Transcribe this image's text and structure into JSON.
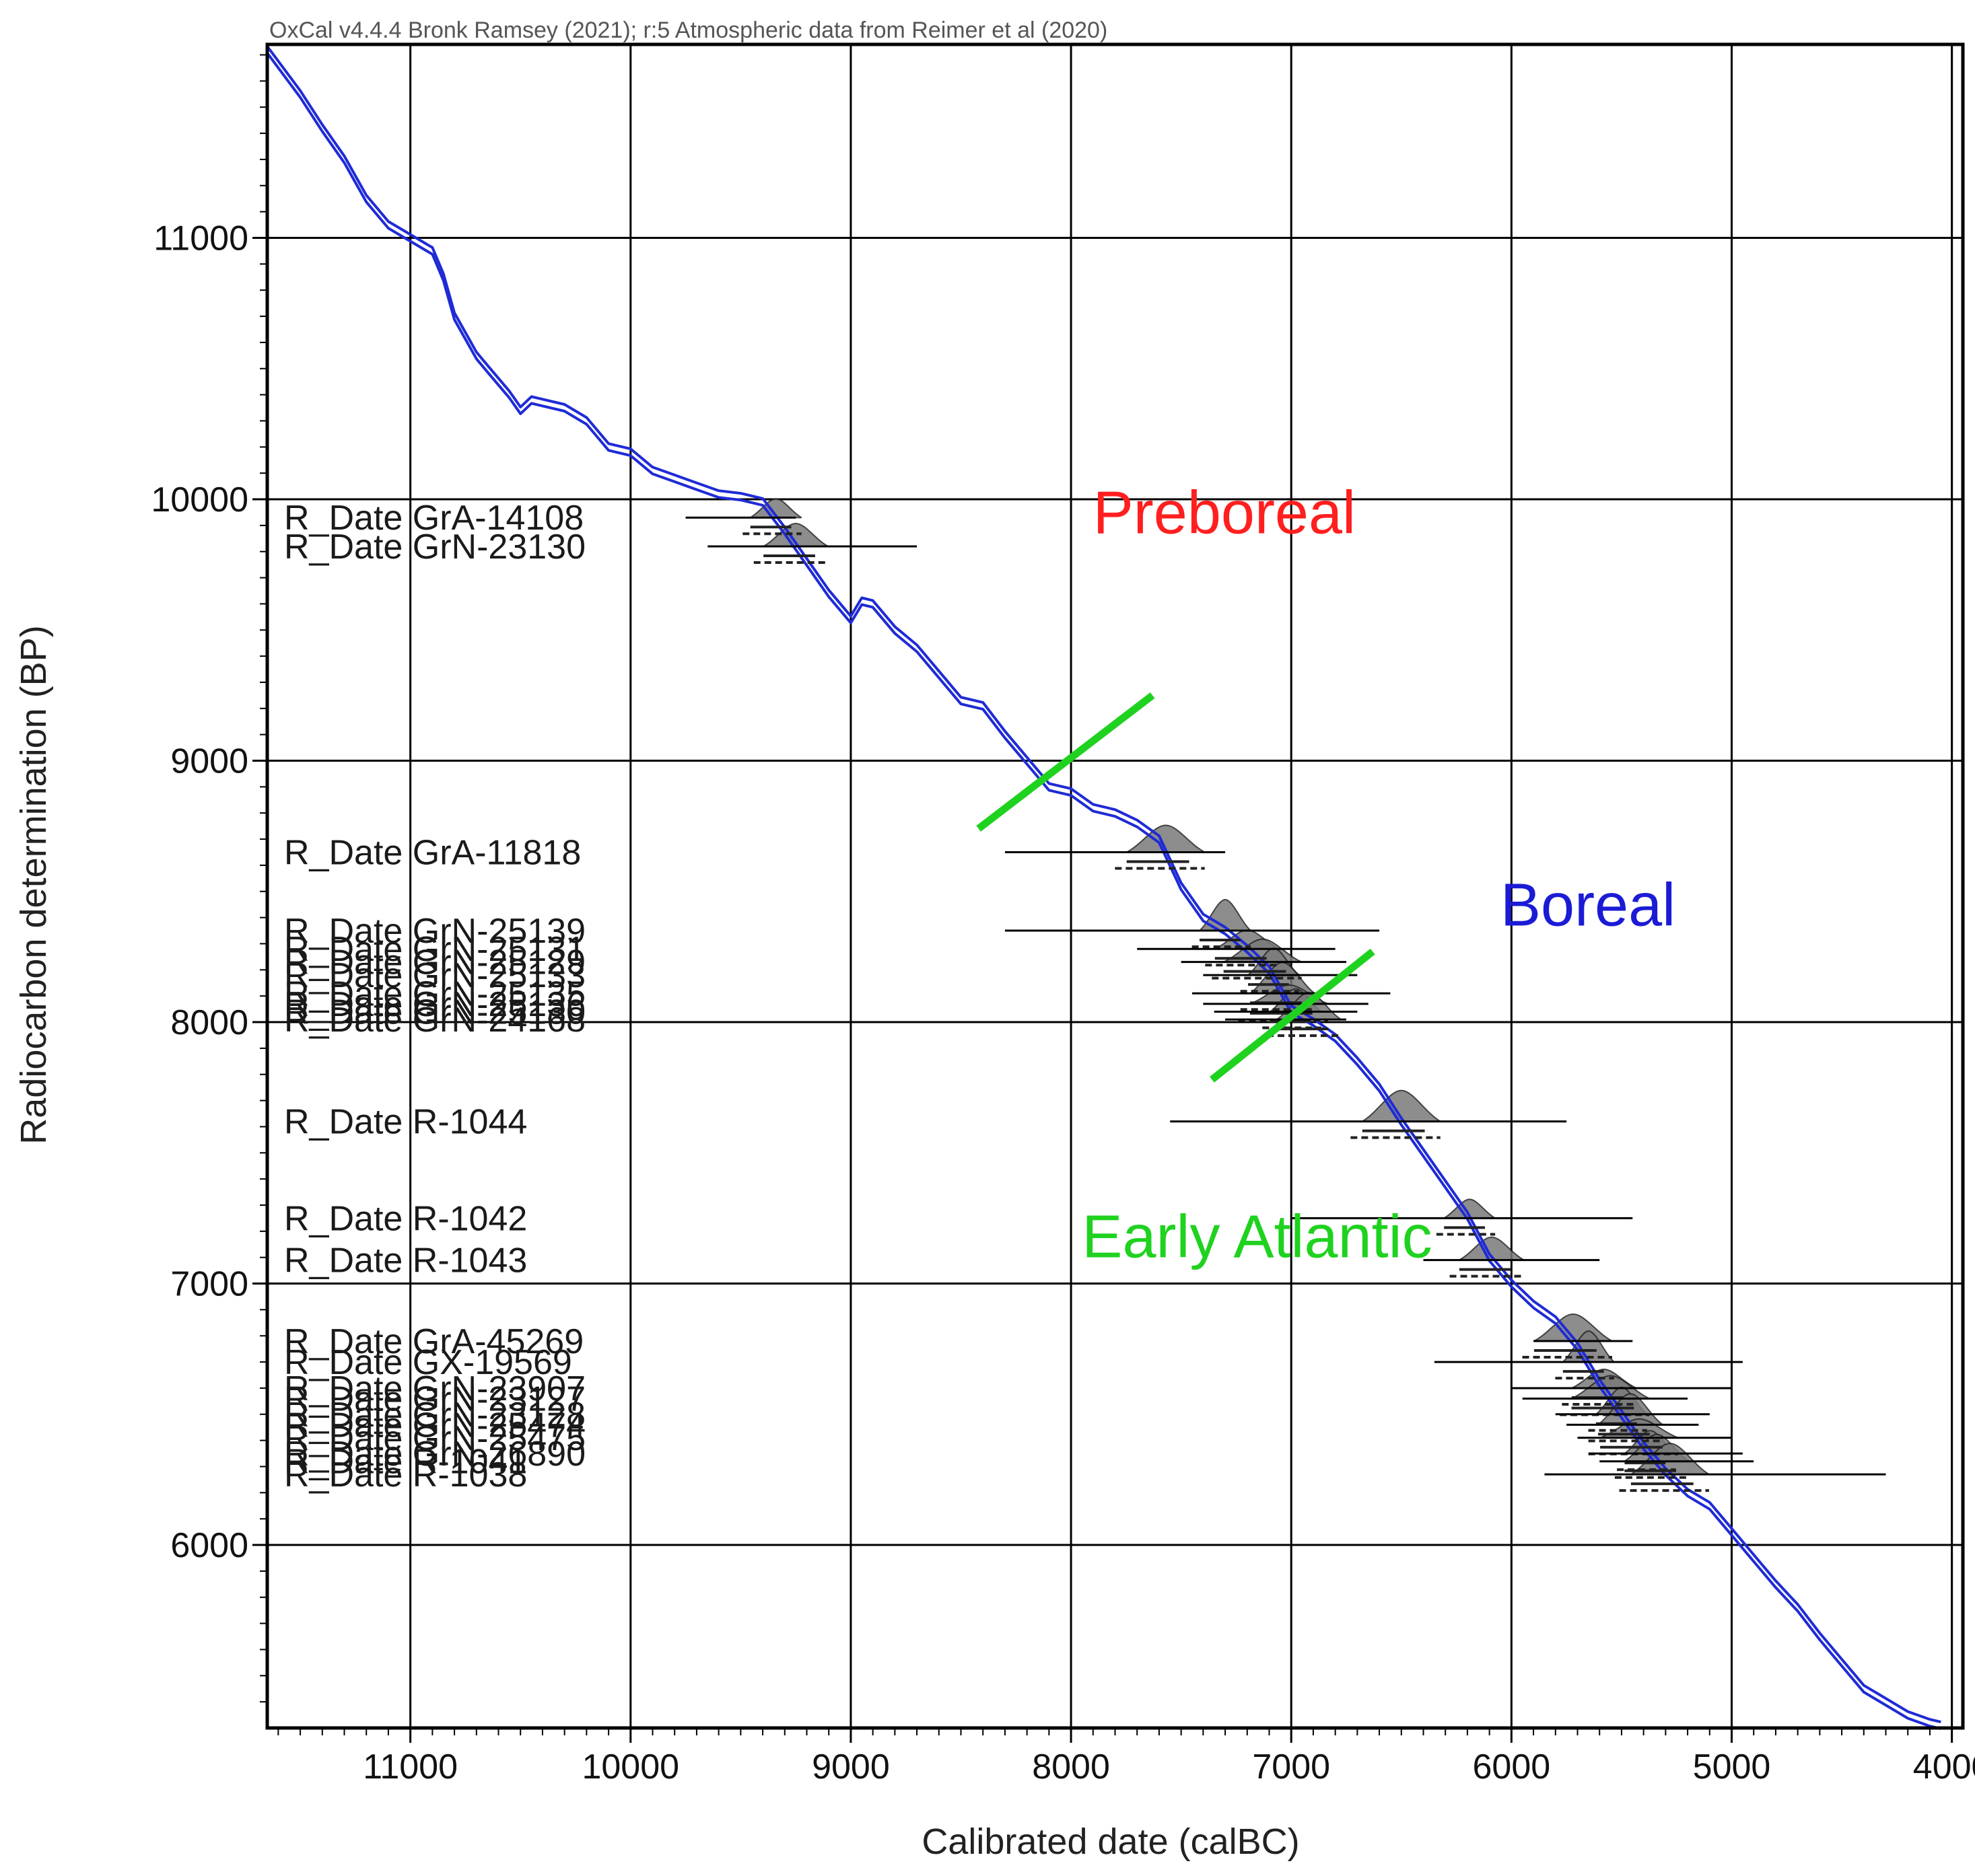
{
  "header": "OxCal v4.4.4 Bronk Ramsey (2021); r:5 Atmospheric data from Reimer et al (2020)",
  "chart_data": {
    "type": "line",
    "title": "OxCal v4.4.4 Bronk Ramsey (2021); r:5 Atmospheric data from Reimer et al (2020)",
    "xlabel": "Calibrated date (calBC)",
    "ylabel": "Radiocarbon determination (BP)",
    "xlim": [
      11650,
      3950
    ],
    "ylim": [
      5300,
      11740
    ],
    "x_reversed": true,
    "x_ticks": [
      "11000",
      "10000",
      "9000",
      "8000",
      "7000",
      "6000",
      "5000",
      "4000"
    ],
    "y_ticks": [
      "11000",
      "10000",
      "9000",
      "8000",
      "7000",
      "6000"
    ],
    "x_tick_values": [
      11000,
      10000,
      9000,
      8000,
      7000,
      6000,
      5000,
      4000
    ],
    "y_tick_values": [
      11000,
      10000,
      9000,
      8000,
      7000,
      6000
    ],
    "grid": true,
    "calibration_curve": {
      "name": "IntCal20 atmospheric calibration curve",
      "color": "#1f2bd6",
      "x": [
        11650,
        11500,
        11400,
        11300,
        11200,
        11100,
        11000,
        10900,
        10850,
        10800,
        10700,
        10650,
        10550,
        10500,
        10450,
        10400,
        10300,
        10200,
        10100,
        10000,
        9900,
        9800,
        9700,
        9600,
        9500,
        9400,
        9300,
        9200,
        9100,
        9000,
        8950,
        8900,
        8800,
        8700,
        8600,
        8500,
        8400,
        8300,
        8200,
        8100,
        8000,
        7900,
        7800,
        7700,
        7600,
        7500,
        7400,
        7300,
        7200,
        7100,
        7000,
        6900,
        6800,
        6700,
        6600,
        6500,
        6400,
        6300,
        6200,
        6100,
        6000,
        5900,
        5800,
        5700,
        5600,
        5500,
        5400,
        5300,
        5200,
        5100,
        5000,
        4900,
        4800,
        4700,
        4600,
        4500,
        4400,
        4300,
        4200,
        4100,
        4050
      ],
      "values": [
        11720,
        11550,
        11420,
        11300,
        11150,
        11050,
        11000,
        10950,
        10850,
        10700,
        10550,
        10500,
        10400,
        10340,
        10380,
        10370,
        10350,
        10300,
        10200,
        10180,
        10110,
        10080,
        10050,
        10020,
        10010,
        9990,
        9880,
        9760,
        9640,
        9540,
        9610,
        9600,
        9500,
        9430,
        9330,
        9230,
        9210,
        9100,
        9000,
        8900,
        8880,
        8820,
        8800,
        8760,
        8700,
        8520,
        8400,
        8350,
        8280,
        8200,
        8050,
        8000,
        7940,
        7850,
        7750,
        7620,
        7500,
        7380,
        7260,
        7100,
        7000,
        6920,
        6860,
        6760,
        6620,
        6500,
        6380,
        6280,
        6200,
        6150,
        6050,
        5950,
        5850,
        5760,
        5650,
        5550,
        5450,
        5400,
        5350,
        5320,
        5310
      ]
    },
    "samples": [
      {
        "label": "R_Date GrA-14108",
        "bp": 9930,
        "x_from": 9750,
        "x_to": 9250
      },
      {
        "label": "R_Date GrN-23130",
        "bp": 9820,
        "x_from": 9650,
        "x_to": 8700
      },
      {
        "label": "R_Date GrA-11818",
        "bp": 8650,
        "x_from": 8300,
        "x_to": 7300
      },
      {
        "label": "R_Date GrN-25139",
        "bp": 8350,
        "x_from": 8300,
        "x_to": 6600
      },
      {
        "label": "R_Date GrN-25131",
        "bp": 8280,
        "x_from": 7700,
        "x_to": 6800
      },
      {
        "label": "R_Date GrN-25129",
        "bp": 8230,
        "x_from": 7500,
        "x_to": 6750
      },
      {
        "label": "R_Date GrN-25133",
        "bp": 8180,
        "x_from": 7400,
        "x_to": 6700
      },
      {
        "label": "R_Date GrN-25135",
        "bp": 8110,
        "x_from": 7450,
        "x_to": 6550
      },
      {
        "label": "R_Date GrN-25136",
        "bp": 8070,
        "x_from": 7400,
        "x_to": 6650
      },
      {
        "label": "R_Date GrN-25130",
        "bp": 8040,
        "x_from": 7350,
        "x_to": 6700
      },
      {
        "label": "R_Date GrN-24168",
        "bp": 8010,
        "x_from": 7300,
        "x_to": 6750
      },
      {
        "label": "R_Date R-1044",
        "bp": 7620,
        "x_from": 7550,
        "x_to": 5750
      },
      {
        "label": "R_Date R-1042",
        "bp": 7250,
        "x_from": 7000,
        "x_to": 5450
      },
      {
        "label": "R_Date R-1043",
        "bp": 7090,
        "x_from": 6400,
        "x_to": 5600
      },
      {
        "label": "R_Date GrA-45269",
        "bp": 6780,
        "x_from": 5900,
        "x_to": 5450
      },
      {
        "label": "R_Date GX-19569",
        "bp": 6700,
        "x_from": 6350,
        "x_to": 4950
      },
      {
        "label": "R_Date GrN-23907",
        "bp": 6600,
        "x_from": 6000,
        "x_to": 5000
      },
      {
        "label": "R_Date GrN-23127",
        "bp": 6560,
        "x_from": 5950,
        "x_to": 5200
      },
      {
        "label": "R_Date GrN-23128",
        "bp": 6500,
        "x_from": 5800,
        "x_to": 5100
      },
      {
        "label": "R_Date GrN-25474",
        "bp": 6460,
        "x_from": 5750,
        "x_to": 5150
      },
      {
        "label": "R_Date GrN-25475",
        "bp": 6410,
        "x_from": 5700,
        "x_to": 5000
      },
      {
        "label": "R_Date GrN-26890",
        "bp": 6350,
        "x_from": 5650,
        "x_to": 4950
      },
      {
        "label": "R_Date R-1041",
        "bp": 6320,
        "x_from": 5600,
        "x_to": 4900
      },
      {
        "label": "R_Date R-1038",
        "bp": 6270,
        "x_from": 5850,
        "x_to": 4300
      }
    ],
    "period_labels": [
      {
        "text": "Preboreal",
        "color": "#ff1f1f",
        "x": 7900,
        "bp": 9870
      },
      {
        "text": "Boreal",
        "color": "#1b1bd6",
        "x": 6050,
        "bp": 8370
      },
      {
        "text": "Early Atlantic",
        "color": "#1fd21f",
        "x": 7950,
        "bp": 7100
      }
    ],
    "period_boundaries": [
      {
        "name": "Preboreal/Boreal boundary",
        "color": "#1fd21f",
        "x1": 8420,
        "bp1": 8740,
        "x2": 7630,
        "bp2": 9250
      },
      {
        "name": "Boreal/Early Atlantic boundary",
        "color": "#1fd21f",
        "x1": 7360,
        "bp1": 7780,
        "x2": 6630,
        "bp2": 8270
      }
    ]
  }
}
